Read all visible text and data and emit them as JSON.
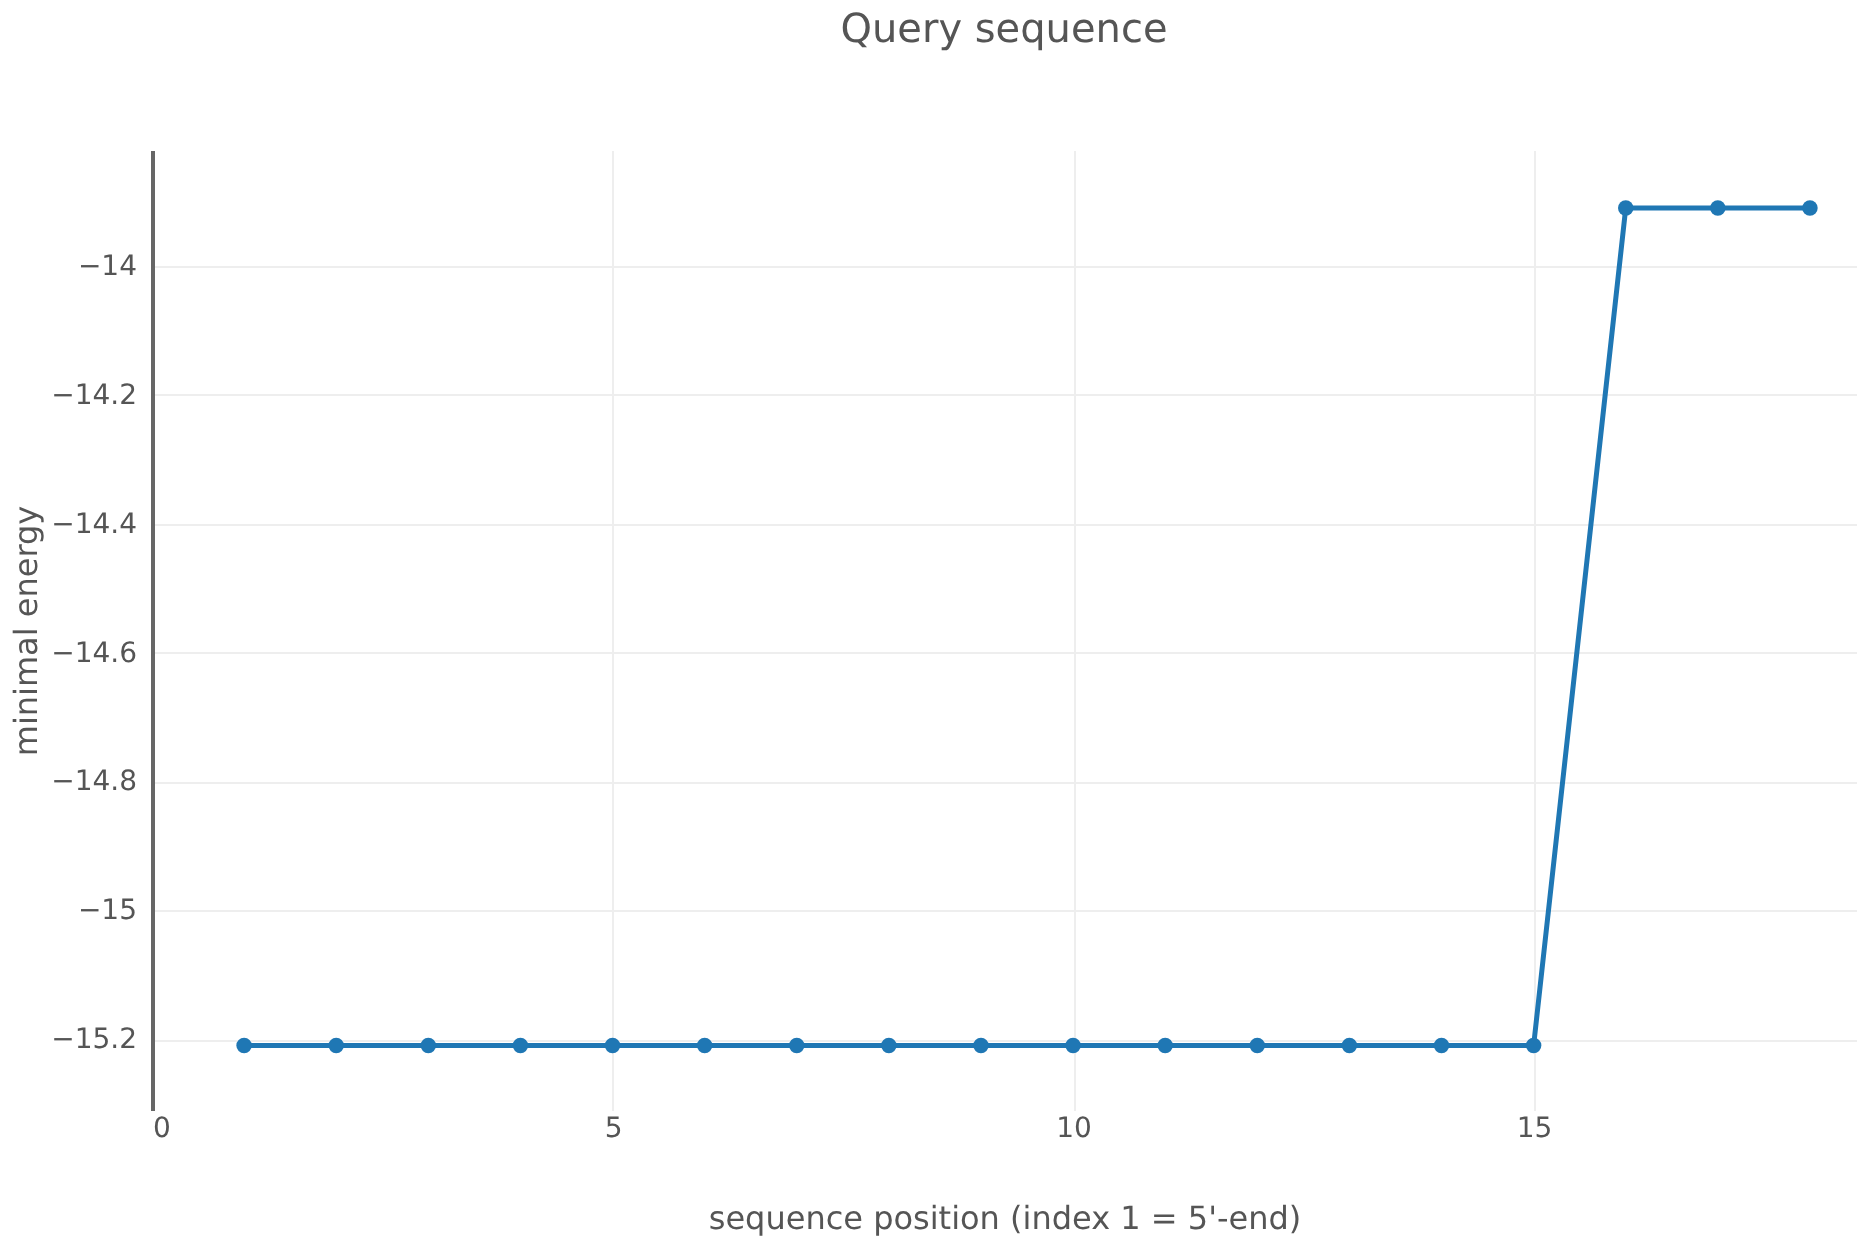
{
  "chart_data": {
    "type": "line",
    "title": "Query sequence",
    "xlabel": "sequence position (index 1 = 5'-end)",
    "ylabel": "minimal energy",
    "x": [
      1,
      2,
      3,
      4,
      5,
      6,
      7,
      8,
      9,
      10,
      11,
      12,
      13,
      14,
      15,
      16,
      17,
      18
    ],
    "series": [
      {
        "color": "#1f77b4",
        "values": [
          -15.21,
          -15.21,
          -15.21,
          -15.21,
          -15.21,
          -15.21,
          -15.21,
          -15.21,
          -15.21,
          -15.21,
          -15.21,
          -15.21,
          -15.21,
          -15.21,
          -15.21,
          -13.91,
          -13.91,
          -13.91
        ]
      }
    ],
    "xlim": [
      0,
      18.5
    ],
    "xticks": [
      0,
      5,
      10,
      15
    ],
    "ylim": [
      -15.31,
      -13.82
    ],
    "yticks": [
      -15.2,
      -15,
      -14.8,
      -14.6,
      -14.4,
      -14.2,
      -14
    ],
    "grid": true,
    "marker": "circle",
    "line_style": "solid"
  }
}
